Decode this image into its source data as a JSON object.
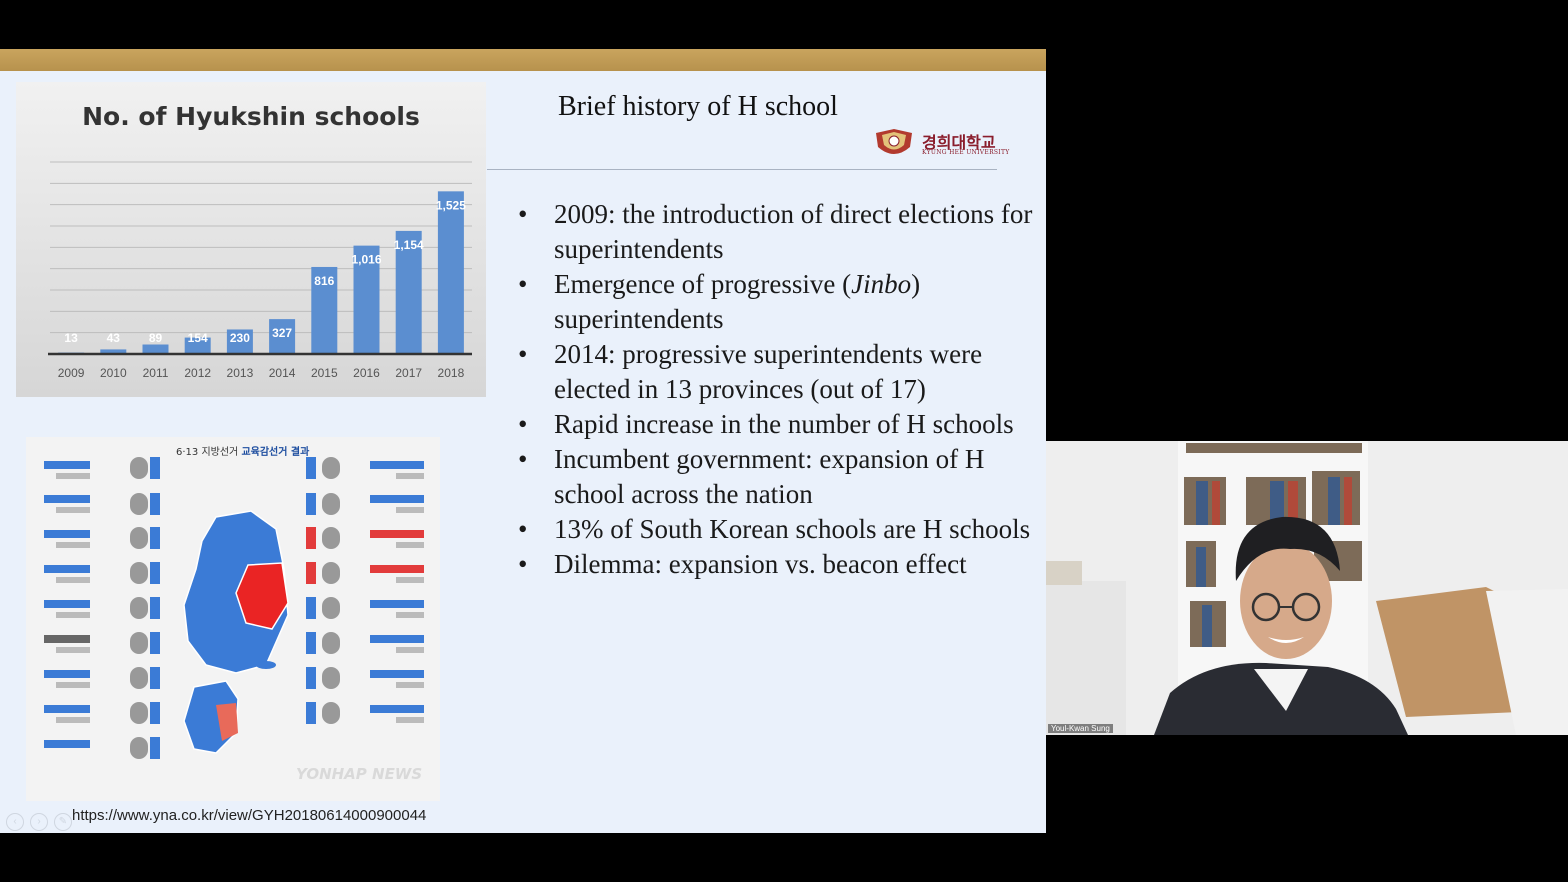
{
  "slide": {
    "title": "Brief history of H school",
    "logo": {
      "korean": "경희대학교",
      "english": "KYUNG HEE UNIVERSITY"
    },
    "bullets": [
      {
        "text": "2009: the introduction of direct elections for superintendents"
      },
      {
        "pre": "Emergence of progressive (",
        "em": "Jinbo",
        "post": ") superintendents"
      },
      {
        "text": "2014: progressive superintendents were elected in 13 provinces (out of 17)"
      },
      {
        "text": "Rapid increase in the number of H schools"
      },
      {
        "text": "Incumbent government: expansion of H school across the nation"
      },
      {
        "text": "13% of South Korean schools are H schools"
      },
      {
        "text": "Dilemma: expansion vs. beacon effect"
      }
    ],
    "source_url": "https://www.yna.co.kr/view/GYH20180614000900044",
    "map_heading": {
      "pre": "6·13 지방선거 ",
      "bold": "교육감선거 결과"
    },
    "map_watermark": "YONHAP NEWS"
  },
  "chart_data": {
    "type": "bar",
    "title": "No. of Hyukshin schools",
    "categories": [
      "2009",
      "2010",
      "2011",
      "2012",
      "2013",
      "2014",
      "2015",
      "2016",
      "2017",
      "2018"
    ],
    "values": [
      13,
      43,
      89,
      154,
      230,
      327,
      816,
      1016,
      1154,
      1525
    ],
    "value_labels": [
      "13",
      "43",
      "89",
      "154",
      "230",
      "327",
      "816",
      "1,016",
      "1,154",
      "1,525"
    ],
    "ylim": [
      0,
      1800
    ],
    "xlabel": "",
    "ylabel": "",
    "grid": true,
    "bar_color": "#5b8ed0"
  },
  "video": {
    "participant_name": "Youl-Kwan Sung"
  }
}
